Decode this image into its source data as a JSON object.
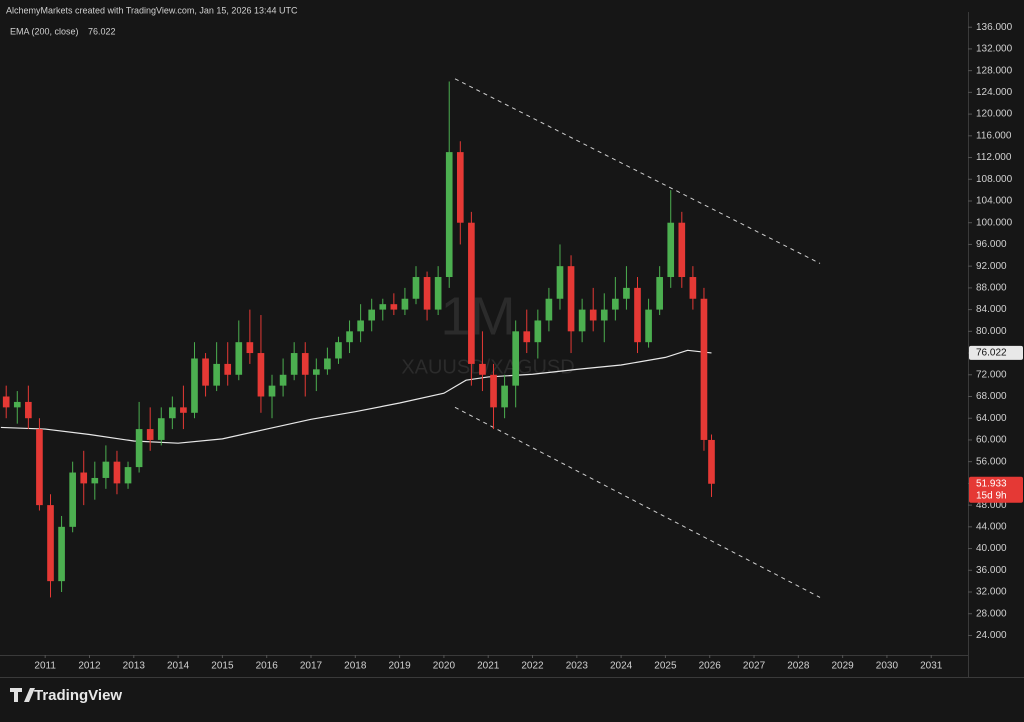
{
  "chart_data": {
    "type": "candlestick",
    "header": "AlchemyMarkets created with TradingView.com, Jan 15, 2026 13:44 UTC",
    "indicator_label": "EMA (200, close)",
    "ema_value": 76.022,
    "interval_watermark": "1M",
    "symbol_watermark": "XAUUSD/XAGUSD",
    "countdown": "15d 9h",
    "brand": "TradingView",
    "up_color": "#4caf50",
    "down_color": "#e53935",
    "ema_color": "#e8e8e8",
    "x": [
      2010.12,
      2010.37,
      2010.62,
      2010.87,
      2011.12,
      2011.37,
      2011.62,
      2011.87,
      2012.12,
      2012.37,
      2012.62,
      2012.87,
      2013.12,
      2013.37,
      2013.62,
      2013.87,
      2014.12,
      2014.37,
      2014.62,
      2014.87,
      2015.12,
      2015.37,
      2015.62,
      2015.87,
      2016.12,
      2016.37,
      2016.62,
      2016.87,
      2017.12,
      2017.37,
      2017.62,
      2017.87,
      2018.12,
      2018.37,
      2018.62,
      2018.87,
      2019.12,
      2019.37,
      2019.62,
      2019.87,
      2020.12,
      2020.37,
      2020.62,
      2020.87,
      2021.12,
      2021.37,
      2021.62,
      2021.87,
      2022.12,
      2022.37,
      2022.62,
      2022.87,
      2023.12,
      2023.37,
      2023.62,
      2023.87,
      2024.12,
      2024.37,
      2024.62,
      2024.87,
      2025.12,
      2025.37,
      2025.62,
      2025.87,
      2026.04
    ],
    "open": [
      68,
      66,
      67,
      62,
      48,
      34,
      44,
      54,
      52,
      53,
      56,
      52,
      55,
      62,
      60,
      64,
      66,
      65,
      75,
      70,
      74,
      72,
      78,
      76,
      68,
      70,
      72,
      76,
      72,
      73,
      75,
      78,
      80,
      82,
      84,
      85,
      84,
      86,
      90,
      84,
      90,
      113,
      100,
      74,
      72,
      66,
      70,
      80,
      78,
      82,
      86,
      92,
      80,
      84,
      82,
      84,
      86,
      88,
      78,
      84,
      90,
      100,
      90,
      86,
      60
    ],
    "high": [
      70,
      69,
      70,
      64,
      50,
      46,
      56,
      58,
      56,
      59,
      58,
      56,
      67,
      66,
      66,
      68,
      70,
      78,
      76,
      78,
      78,
      82,
      84,
      83,
      72,
      75,
      78,
      78,
      75,
      77,
      79,
      82,
      85,
      86,
      86,
      87,
      88,
      92,
      91,
      92,
      126,
      115,
      102,
      80,
      74,
      72,
      82,
      84,
      84,
      88,
      96,
      94,
      86,
      88,
      87,
      90,
      92,
      90,
      86,
      92,
      106,
      102,
      92,
      88,
      61
    ],
    "low": [
      64,
      63,
      62,
      47,
      31,
      32,
      43,
      48,
      49,
      51,
      50,
      51,
      54,
      58,
      59,
      62,
      62,
      64,
      68,
      69,
      70,
      71,
      74,
      65,
      64,
      68,
      71,
      68,
      69,
      72,
      74,
      76,
      78,
      80,
      82,
      83,
      83,
      85,
      82,
      83,
      88,
      96,
      70,
      69,
      62,
      64,
      66,
      76,
      75,
      80,
      84,
      76,
      78,
      80,
      78,
      82,
      84,
      76,
      77,
      83,
      88,
      88,
      84,
      58,
      49.5
    ],
    "close": [
      66,
      67,
      64,
      48,
      34,
      44,
      54,
      52,
      53,
      56,
      52,
      55,
      62,
      60,
      64,
      66,
      65,
      75,
      70,
      74,
      72,
      78,
      76,
      68,
      70,
      72,
      76,
      72,
      73,
      75,
      78,
      80,
      82,
      84,
      85,
      84,
      86,
      90,
      84,
      90,
      113,
      100,
      74,
      72,
      66,
      70,
      80,
      78,
      82,
      86,
      92,
      80,
      84,
      82,
      84,
      86,
      88,
      78,
      84,
      90,
      100,
      90,
      86,
      60,
      51.933
    ],
    "ema": {
      "x": [
        2010.0,
        2011.0,
        2012.0,
        2013.0,
        2014.0,
        2015.0,
        2016.0,
        2017.0,
        2018.0,
        2019.0,
        2020.0,
        2020.5,
        2021.0,
        2022.0,
        2023.0,
        2024.0,
        2025.0,
        2025.5,
        2026.04
      ],
      "values": [
        62.3,
        62.0,
        61.0,
        59.8,
        59.4,
        60.2,
        62.0,
        63.8,
        65.2,
        66.8,
        68.6,
        71.0,
        71.6,
        72.1,
        73.0,
        73.8,
        75.2,
        76.5,
        76.022
      ]
    },
    "trendlines": [
      {
        "x": [
          2020.25,
          2028.49
        ],
        "values": [
          126.5,
          92.5
        ]
      },
      {
        "x": [
          2020.25,
          2028.49
        ],
        "values": [
          66,
          31
        ]
      }
    ],
    "xlim": [
      2009.98,
      2031.83
    ],
    "ylim": [
      20.4,
      138.8
    ],
    "xticks": [
      2011,
      2012,
      2013,
      2014,
      2015,
      2016,
      2017,
      2018,
      2019,
      2020,
      2021,
      2022,
      2023,
      2024,
      2025,
      2026,
      2027,
      2028,
      2029,
      2030,
      2031
    ],
    "yticks": [
      {
        "value": 24,
        "label": "24.000"
      },
      {
        "value": 28,
        "label": "28.000"
      },
      {
        "value": 32,
        "label": "32.000"
      },
      {
        "value": 36,
        "label": "36.000"
      },
      {
        "value": 40,
        "label": "40.000"
      },
      {
        "value": 44,
        "label": "44.000"
      },
      {
        "value": 48,
        "label": "48.000"
      },
      {
        "value": 52,
        "label": "52.000"
      },
      {
        "value": 56,
        "label": "56.000"
      },
      {
        "value": 60,
        "label": "60.000"
      },
      {
        "value": 64,
        "label": "64.000"
      },
      {
        "value": 68,
        "label": "68.000"
      },
      {
        "value": 72,
        "label": "72.000"
      },
      {
        "value": 76,
        "label": "76.000"
      },
      {
        "value": 80,
        "label": "80.000"
      },
      {
        "value": 84,
        "label": "84.000"
      },
      {
        "value": 88,
        "label": "88.000"
      },
      {
        "value": 92,
        "label": "92.000"
      },
      {
        "value": 96,
        "label": "96.000"
      },
      {
        "value": 100,
        "label": "100.000"
      },
      {
        "value": 104,
        "label": "104.000"
      },
      {
        "value": 108,
        "label": "108.000"
      },
      {
        "value": 112,
        "label": "112.000"
      },
      {
        "value": 116,
        "label": "116.000"
      },
      {
        "value": 120,
        "label": "120.000"
      },
      {
        "value": 124,
        "label": "124.000"
      },
      {
        "value": 128,
        "label": "128.000"
      },
      {
        "value": 132,
        "label": "132.000"
      },
      {
        "value": 136,
        "label": "136.000"
      }
    ]
  }
}
